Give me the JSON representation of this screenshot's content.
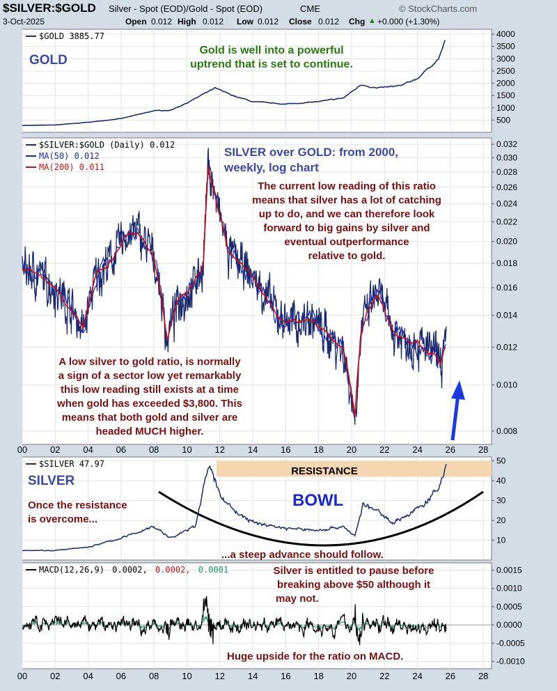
{
  "header": {
    "symbol": "$SILVER:$GOLD",
    "description": "Silver - Spot (EOD)/Gold - Spot (EOD)",
    "exchange": "CME",
    "brand": "© StockCharts.com",
    "date": "3-Oct-2025",
    "open_label": "Open",
    "open": "0.012",
    "high_label": "High",
    "high": "0.012",
    "low_label": "Low",
    "low": "0.012",
    "close_label": "Close",
    "close": "0.012",
    "chg_label": "Chg",
    "chg": "+0.000 (+1.30%)",
    "chg_arrow": "▲"
  },
  "colors": {
    "price_line": "#1a2a6c",
    "ma50": "#1a2aa0",
    "ma200": "#cc1010",
    "annotation_red": "#7a1010",
    "annotation_green": "#2a7a10",
    "annotation_blue": "#3a4aa0",
    "resistance_band": "#f4d6b0",
    "arrow": "#1a3ae0"
  },
  "chart_data": [
    {
      "type": "line",
      "name": "gold-panel",
      "legend": "$GOLD 3885.77",
      "panel_label": "GOLD",
      "annotation": "Gold is well into a powerful uptrend that is set to continue.",
      "annotation_lines": [
        "Gold is well into a powerful",
        "uptrend that is set to continue."
      ],
      "y_ticks": [
        "4000",
        "3500",
        "3000",
        "2500",
        "2000",
        "1500",
        "1000",
        "500"
      ],
      "ylim": [
        0,
        4200
      ],
      "x": [
        2000,
        2002,
        2004,
        2006,
        2008,
        2009,
        2010,
        2011.7,
        2013,
        2014,
        2016,
        2018,
        2019.5,
        2020.6,
        2021.5,
        2023,
        2024,
        2025.3,
        2025.75
      ],
      "values": [
        280,
        300,
        410,
        560,
        880,
        900,
        1200,
        1800,
        1450,
        1250,
        1150,
        1250,
        1400,
        1950,
        1800,
        1900,
        2200,
        3000,
        3885
      ]
    },
    {
      "type": "line",
      "name": "ratio-panel",
      "legend": "$SILVER:$GOLD (Daily) 0.012",
      "ma50_legend": "MA(50) 0.012",
      "ma200_legend": "MA(200) 0.011",
      "title_lines": [
        "SILVER over GOLD: from 2000,",
        "weekly, log chart"
      ],
      "annotation_top_lines": [
        "The current low reading of this ratio",
        "means that silver has a lot of catching",
        "up to do, and we can therefore look",
        "forward to big gains by silver and",
        "eventual outperformance",
        "relative to gold."
      ],
      "annotation_left_lines": [
        "A low silver to gold  ratio, is normally",
        "a sign of a sector low yet remarkably",
        "this low reading still exists at a time",
        "when gold has exceeded $3,800. This",
        "means that both gold and silver are",
        "headed MUCH higher."
      ],
      "y_ticks": [
        "0.032",
        "0.030",
        "0.028",
        "0.026",
        "0.024",
        "0.022",
        "0.020",
        "0.018",
        "0.016",
        "0.014",
        "0.012",
        "0.010",
        "0.008"
      ],
      "ylim": [
        0.0075,
        0.033
      ],
      "log_scale": true,
      "x": [
        2000,
        2001,
        2002,
        2003,
        2003.7,
        2004.5,
        2005.5,
        2006.2,
        2007,
        2008,
        2008.8,
        2009.5,
        2010.3,
        2011.0,
        2011.3,
        2011.8,
        2012.5,
        2013.5,
        2014.5,
        2015.5,
        2016.5,
        2017.5,
        2018.5,
        2019.5,
        2020.2,
        2020.6,
        2021.0,
        2021.6,
        2022.5,
        2023.2,
        2024,
        2024.8,
        2025.4,
        2025.75
      ],
      "values": [
        0.0175,
        0.017,
        0.016,
        0.0145,
        0.013,
        0.017,
        0.0185,
        0.0205,
        0.021,
        0.0185,
        0.0125,
        0.015,
        0.016,
        0.018,
        0.029,
        0.024,
        0.019,
        0.0175,
        0.016,
        0.014,
        0.0135,
        0.0138,
        0.0128,
        0.0118,
        0.0085,
        0.013,
        0.0145,
        0.0155,
        0.013,
        0.0125,
        0.0122,
        0.0118,
        0.0112,
        0.0121
      ]
    },
    {
      "type": "line",
      "name": "silver-panel",
      "legend": "$SILVER 47.97",
      "panel_label": "SILVER",
      "resistance_label": "RESISTANCE",
      "bowl_label": "BOWL",
      "annotation_left_lines": [
        "Once the resistance",
        "is overcome..."
      ],
      "annotation_bottom": "...a steep advance should follow.",
      "y_ticks": [
        "50",
        "40",
        "30",
        "20",
        "10"
      ],
      "ylim": [
        0,
        52
      ],
      "resistance_range": [
        42,
        50
      ],
      "x": [
        2000,
        2002,
        2004,
        2006,
        2008,
        2009,
        2010.5,
        2011.3,
        2012,
        2013,
        2014,
        2016,
        2018,
        2019.5,
        2020.2,
        2020.7,
        2021.5,
        2022.5,
        2023.5,
        2024.5,
        2025.3,
        2025.75
      ],
      "values": [
        5,
        4.8,
        6.5,
        11,
        17,
        11,
        17,
        48,
        33,
        24,
        19,
        16,
        15,
        17,
        12,
        28,
        25,
        19,
        23,
        29,
        36,
        48
      ]
    },
    {
      "type": "line",
      "name": "macd-panel",
      "legend": "MACD(12,26,9)",
      "legend_v1": "0.0002,",
      "legend_v2": "0.0002,",
      "legend_v3": "0.0001",
      "annotation_top_lines": [
        "Silver is entitled to pause before",
        "breaking above $50 although it",
        "may not."
      ],
      "annotation_bottom": "Huge upside for the ratio on MACD.",
      "y_ticks": [
        "0.0015",
        "0.0010",
        "0.0005",
        "0.0000",
        "-0.0005",
        "-0.0010"
      ],
      "ylim": [
        -0.0012,
        0.0017
      ]
    }
  ],
  "x_axis": {
    "labels": [
      "00",
      "02",
      "04",
      "06",
      "08",
      "10",
      "12",
      "14",
      "16",
      "18",
      "20",
      "22",
      "24",
      "26",
      "28"
    ],
    "values": [
      2000,
      2002,
      2004,
      2006,
      2008,
      2010,
      2012,
      2014,
      2016,
      2018,
      2020,
      2022,
      2024,
      2026,
      2028
    ],
    "xlim": [
      2000,
      2028.5
    ]
  }
}
